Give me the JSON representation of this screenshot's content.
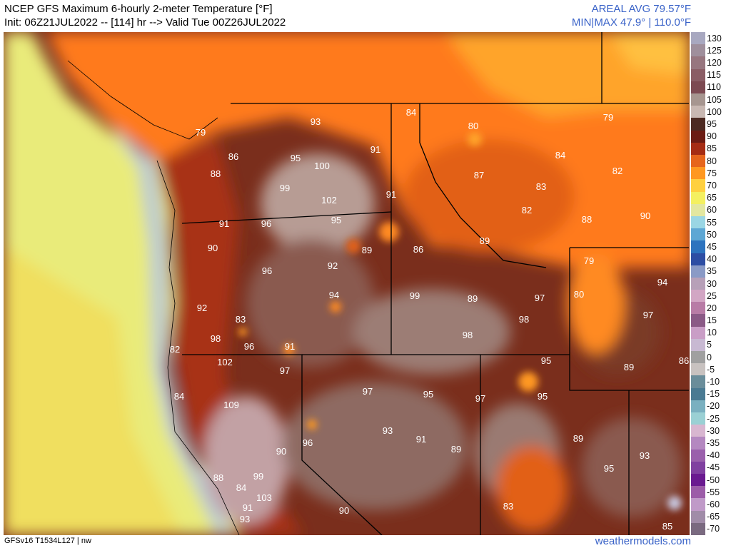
{
  "header": {
    "title": "NCEP GFS Maximum 6-hourly 2-meter Temperature [°F]",
    "init": "Init: 06Z21JUL2022 -- [114] hr --> Valid Tue 00Z26JUL2022",
    "areal_avg": "AREAL AVG 79.57°F",
    "minmax": "MIN|MAX 47.9° | 110.0°F"
  },
  "colorbar": {
    "ticks": [
      "130",
      "125",
      "120",
      "115",
      "110",
      "105",
      "100",
      "95",
      "90",
      "85",
      "80",
      "75",
      "70",
      "65",
      "60",
      "55",
      "50",
      "45",
      "40",
      "35",
      "30",
      "25",
      "20",
      "15",
      "10",
      "5",
      "0",
      "-5",
      "-10",
      "-15",
      "-20",
      "-25",
      "-30",
      "-35",
      "-40",
      "-45",
      "-50",
      "-55",
      "-60",
      "-65",
      "-70"
    ],
    "colors": [
      "#a8a8c0",
      "#9f8f9c",
      "#97767f",
      "#8a5d65",
      "#7c4a52",
      "#a69690",
      "#c8b8b2",
      "#4c2a22",
      "#6b1c14",
      "#a52c14",
      "#e6651c",
      "#ff9820",
      "#ffd040",
      "#f4f060",
      "#e3e7a0",
      "#9ad6e4",
      "#5ea7d4",
      "#2d73be",
      "#2d4da3",
      "#8a9ac6",
      "#b7a0b8",
      "#d2a6c4",
      "#b87ca6",
      "#8a5a86",
      "#c99ec6",
      "#c8b9d2",
      "#a0a0a0",
      "#c8c2c0",
      "#6a8d9a",
      "#4a7a92",
      "#7ab0c0",
      "#9ad0d4",
      "#d8b6d0",
      "#b488c0",
      "#9a60ac",
      "#8040a0",
      "#6a1a90",
      "#9c5ca8",
      "#c09ac8",
      "#a08ca8",
      "#7a6a80"
    ]
  },
  "map_labels": [
    {
      "text": "93"
    },
    {
      "text": "84"
    },
    {
      "text": "80"
    },
    {
      "text": "79"
    },
    {
      "text": "79"
    },
    {
      "text": "86"
    },
    {
      "text": "88"
    },
    {
      "text": "95"
    },
    {
      "text": "100"
    },
    {
      "text": "91"
    },
    {
      "text": "87"
    },
    {
      "text": "84"
    },
    {
      "text": "82"
    },
    {
      "text": "99"
    },
    {
      "text": "83"
    },
    {
      "text": "102"
    },
    {
      "text": "91"
    },
    {
      "text": "82"
    },
    {
      "text": "91"
    },
    {
      "text": "96"
    },
    {
      "text": "95"
    },
    {
      "text": "88"
    },
    {
      "text": "90"
    },
    {
      "text": "90"
    },
    {
      "text": "89"
    },
    {
      "text": "86"
    },
    {
      "text": "89"
    },
    {
      "text": "79"
    },
    {
      "text": "96"
    },
    {
      "text": "92"
    },
    {
      "text": "94"
    },
    {
      "text": "94"
    },
    {
      "text": "99"
    },
    {
      "text": "89"
    },
    {
      "text": "97"
    },
    {
      "text": "80"
    },
    {
      "text": "92"
    },
    {
      "text": "83"
    },
    {
      "text": "98"
    },
    {
      "text": "97"
    },
    {
      "text": "98"
    },
    {
      "text": "96"
    },
    {
      "text": "91"
    },
    {
      "text": "98"
    },
    {
      "text": "82"
    },
    {
      "text": "102"
    },
    {
      "text": "97"
    },
    {
      "text": "95"
    },
    {
      "text": "89"
    },
    {
      "text": "86"
    },
    {
      "text": "97"
    },
    {
      "text": "95"
    },
    {
      "text": "97"
    },
    {
      "text": "95"
    },
    {
      "text": "84"
    },
    {
      "text": "109"
    },
    {
      "text": "93"
    },
    {
      "text": "91"
    },
    {
      "text": "96"
    },
    {
      "text": "89"
    },
    {
      "text": "89"
    },
    {
      "text": "90"
    },
    {
      "text": "93"
    },
    {
      "text": "95"
    },
    {
      "text": "88"
    },
    {
      "text": "99"
    },
    {
      "text": "84"
    },
    {
      "text": "103"
    },
    {
      "text": "91"
    },
    {
      "text": "90"
    },
    {
      "text": "83"
    },
    {
      "text": "93"
    },
    {
      "text": "85"
    }
  ],
  "footer": {
    "model_info": "GFSv16 T1534L127 | nw",
    "site": "weathermodels.com"
  }
}
